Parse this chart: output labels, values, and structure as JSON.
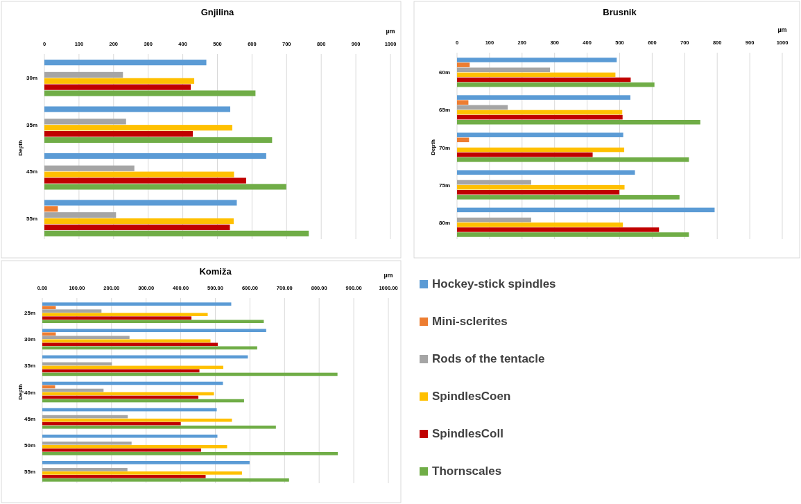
{
  "chart_data": [
    {
      "type": "bar",
      "orientation": "horizontal",
      "title": "Gnjilina",
      "xlabel": "µm",
      "ylabel": "Depth",
      "categories": [
        "30m",
        "35m",
        "45m",
        "55m"
      ],
      "xlim": [
        0,
        1000
      ],
      "xticks": [
        0,
        100,
        200,
        300,
        400,
        500,
        600,
        700,
        800,
        900,
        1000
      ],
      "grid": "x",
      "legend": false,
      "series": [
        {
          "color": "#5b9bd5",
          "values": [
            468,
            537,
            641,
            556
          ]
        },
        {
          "color": "#ed7d31",
          "values": [
            null,
            null,
            null,
            39
          ]
        },
        {
          "color": "#a5a5a5",
          "values": [
            227,
            236,
            260,
            207
          ]
        },
        {
          "color": "#ffc000",
          "values": [
            433,
            543,
            548,
            547
          ]
        },
        {
          "color": "#c00000",
          "values": [
            423,
            429,
            583,
            536
          ]
        },
        {
          "color": "#70ad47",
          "values": [
            610,
            658,
            699,
            764
          ]
        }
      ]
    },
    {
      "type": "bar",
      "orientation": "horizontal",
      "title": "Brusnik",
      "xlabel": "µm",
      "ylabel": "Depth",
      "categories": [
        "60m",
        "65m",
        "70m",
        "75m",
        "80m"
      ],
      "xlim": [
        0,
        1000
      ],
      "xticks": [
        0,
        100,
        200,
        300,
        400,
        500,
        600,
        700,
        800,
        900,
        1000
      ],
      "grid": "x",
      "legend": false,
      "series": [
        {
          "color": "#5b9bd5",
          "values": [
            491,
            533,
            511,
            547,
            792
          ]
        },
        {
          "color": "#ed7d31",
          "values": [
            39,
            35,
            37,
            null,
            null
          ]
        },
        {
          "color": "#a5a5a5",
          "values": [
            286,
            156,
            null,
            228,
            228
          ]
        },
        {
          "color": "#ffc000",
          "values": [
            487,
            508,
            514,
            515,
            510
          ]
        },
        {
          "color": "#c00000",
          "values": [
            534,
            509,
            417,
            499,
            621
          ]
        },
        {
          "color": "#70ad47",
          "values": [
            607,
            748,
            713,
            684,
            713
          ]
        }
      ]
    },
    {
      "type": "bar",
      "orientation": "horizontal",
      "title": "Komiža",
      "xlabel": "µm",
      "ylabel": "Depth",
      "categories": [
        "25m",
        "30m",
        "35m",
        "40m",
        "45m",
        "50m",
        "55m"
      ],
      "xlim": [
        0,
        1000
      ],
      "xticks": [
        {
          "value": 0,
          "label": "0.00"
        },
        {
          "value": 100,
          "label": "100.00"
        },
        {
          "value": 200,
          "label": "200.00"
        },
        {
          "value": 300,
          "label": "300.00"
        },
        {
          "value": 400,
          "label": "400.00"
        },
        {
          "value": 500,
          "label": "500.00"
        },
        {
          "value": 600,
          "label": "600.00"
        },
        {
          "value": 700,
          "label": "700.00"
        },
        {
          "value": 800,
          "label": "800.00"
        },
        {
          "value": 900,
          "label": "900.00"
        },
        {
          "value": 1000,
          "label": "1000.00"
        }
      ],
      "grid": "x",
      "legend": "right",
      "series": [
        {
          "name": "Hockey-stick spindles",
          "color": "#5b9bd5",
          "values": [
            546,
            647,
            594,
            522,
            504,
            506,
            599
          ]
        },
        {
          "name": "Mini-sclerites",
          "color": "#ed7d31",
          "values": [
            39,
            39,
            null,
            37,
            null,
            null,
            null
          ]
        },
        {
          "name": "Rods of the tentacle",
          "color": "#a5a5a5",
          "values": [
            171,
            252,
            201,
            177,
            247,
            258,
            246
          ]
        },
        {
          "name": "SpindlesCoen",
          "color": "#ffc000",
          "values": [
            478,
            486,
            523,
            496,
            548,
            534,
            577
          ]
        },
        {
          "name": "SpindlesColl",
          "color": "#c00000",
          "values": [
            431,
            507,
            454,
            451,
            400,
            459,
            472
          ]
        },
        {
          "name": "Thornscales",
          "color": "#70ad47",
          "values": [
            640,
            621,
            853,
            583,
            675,
            854,
            713
          ]
        }
      ]
    }
  ]
}
